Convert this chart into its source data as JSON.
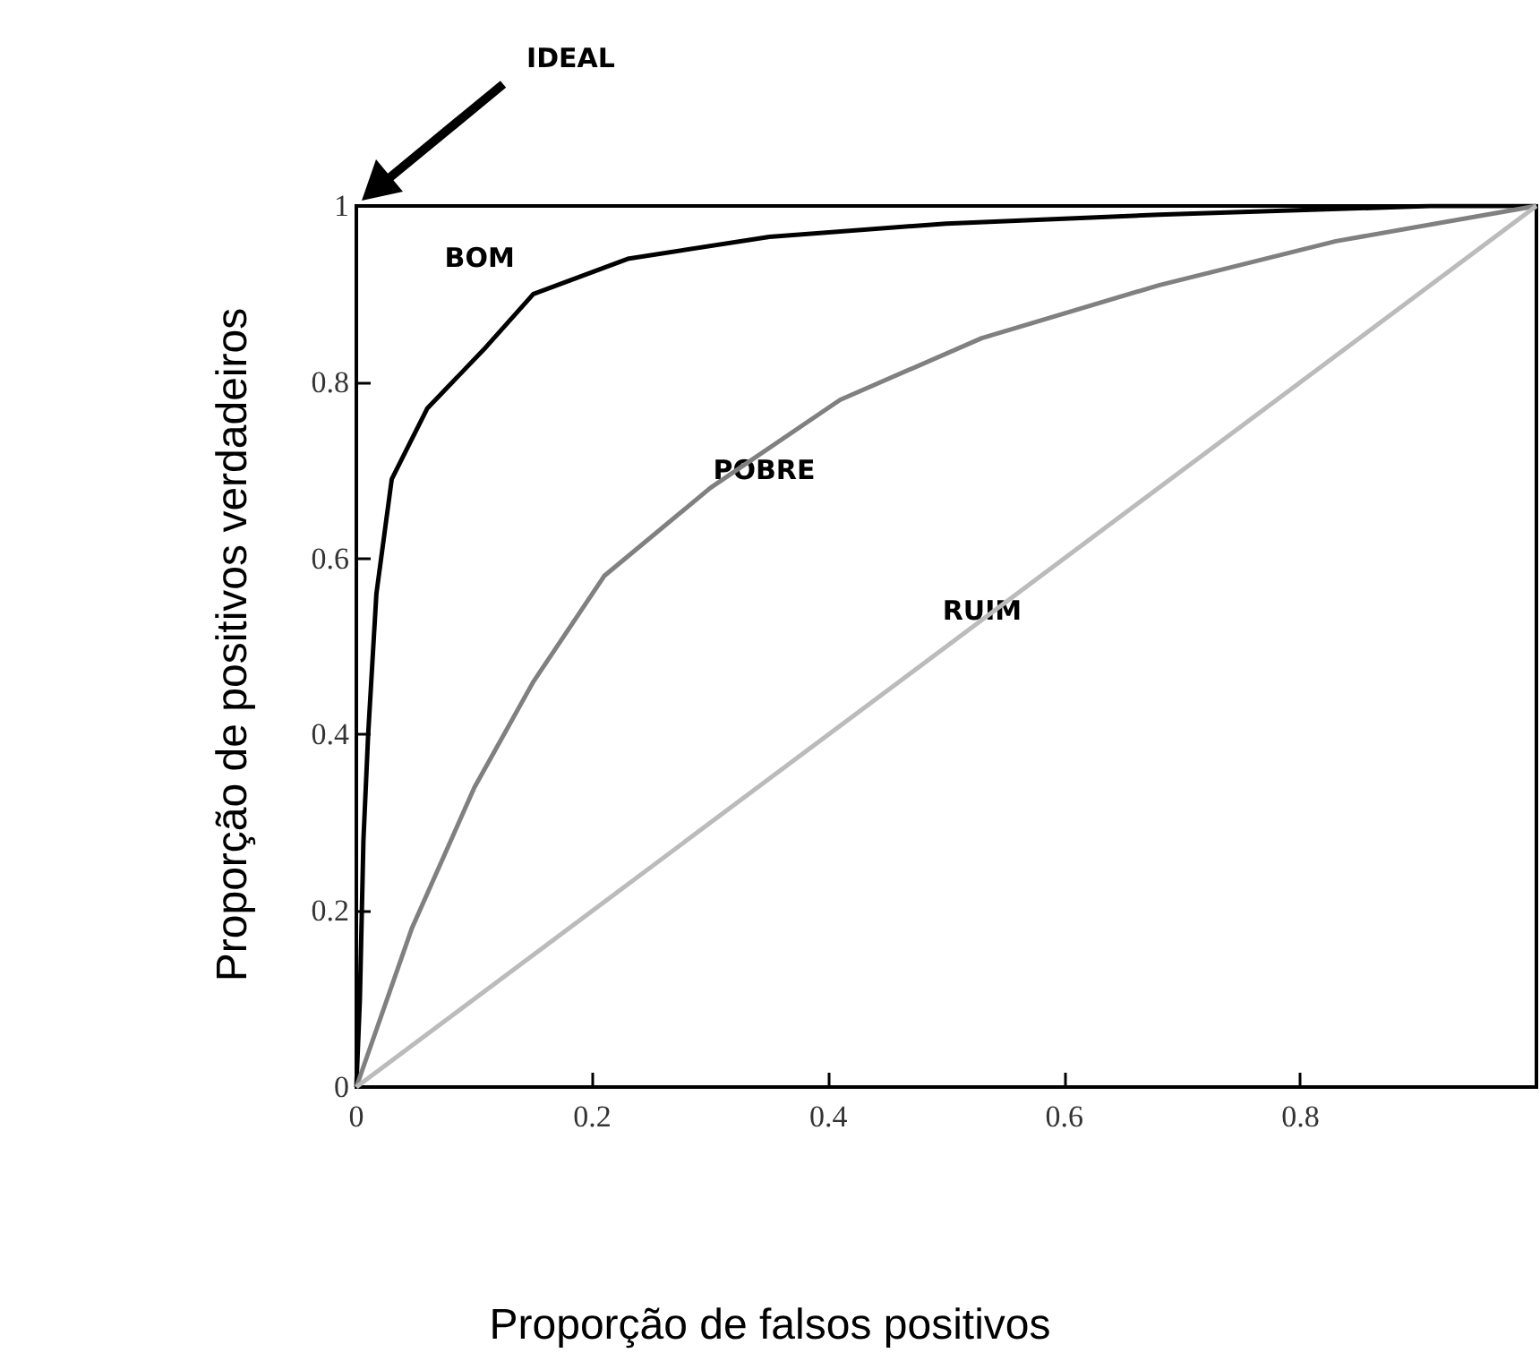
{
  "chart_data": {
    "type": "line",
    "xlabel": "Proporção de falsos positivos",
    "ylabel": "Proporção de positivos verdadeiros",
    "xlim": [
      0,
      1
    ],
    "ylim": [
      0,
      1
    ],
    "xticks": [
      0,
      0.2,
      0.4,
      0.6,
      0.8
    ],
    "yticks": [
      0,
      0.2,
      0.4,
      0.6,
      0.8,
      1
    ],
    "grid": false,
    "legend": false,
    "marker": "none",
    "line_style": "solid",
    "series": [
      {
        "name": "BOM",
        "color": "#000000",
        "x": [
          0,
          0.003,
          0.006,
          0.01,
          0.017,
          0.03,
          0.06,
          0.11,
          0.15,
          0.23,
          0.35,
          0.5,
          0.68,
          0.91,
          1
        ],
        "values": [
          0,
          0.1,
          0.28,
          0.4,
          0.56,
          0.69,
          0.77,
          0.84,
          0.9,
          0.94,
          0.965,
          0.98,
          0.99,
          1,
          1
        ]
      },
      {
        "name": "POBRE",
        "color": "#808080",
        "x": [
          0,
          0.047,
          0.1,
          0.15,
          0.21,
          0.3,
          0.41,
          0.53,
          0.68,
          0.83,
          1
        ],
        "values": [
          0,
          0.18,
          0.34,
          0.46,
          0.58,
          0.68,
          0.78,
          0.85,
          0.91,
          0.96,
          1
        ]
      },
      {
        "name": "RUIM",
        "color": "#bbbbbb",
        "x": [
          0,
          1
        ],
        "values": [
          0,
          1
        ]
      }
    ],
    "annotations": [
      "IDEAL"
    ]
  }
}
